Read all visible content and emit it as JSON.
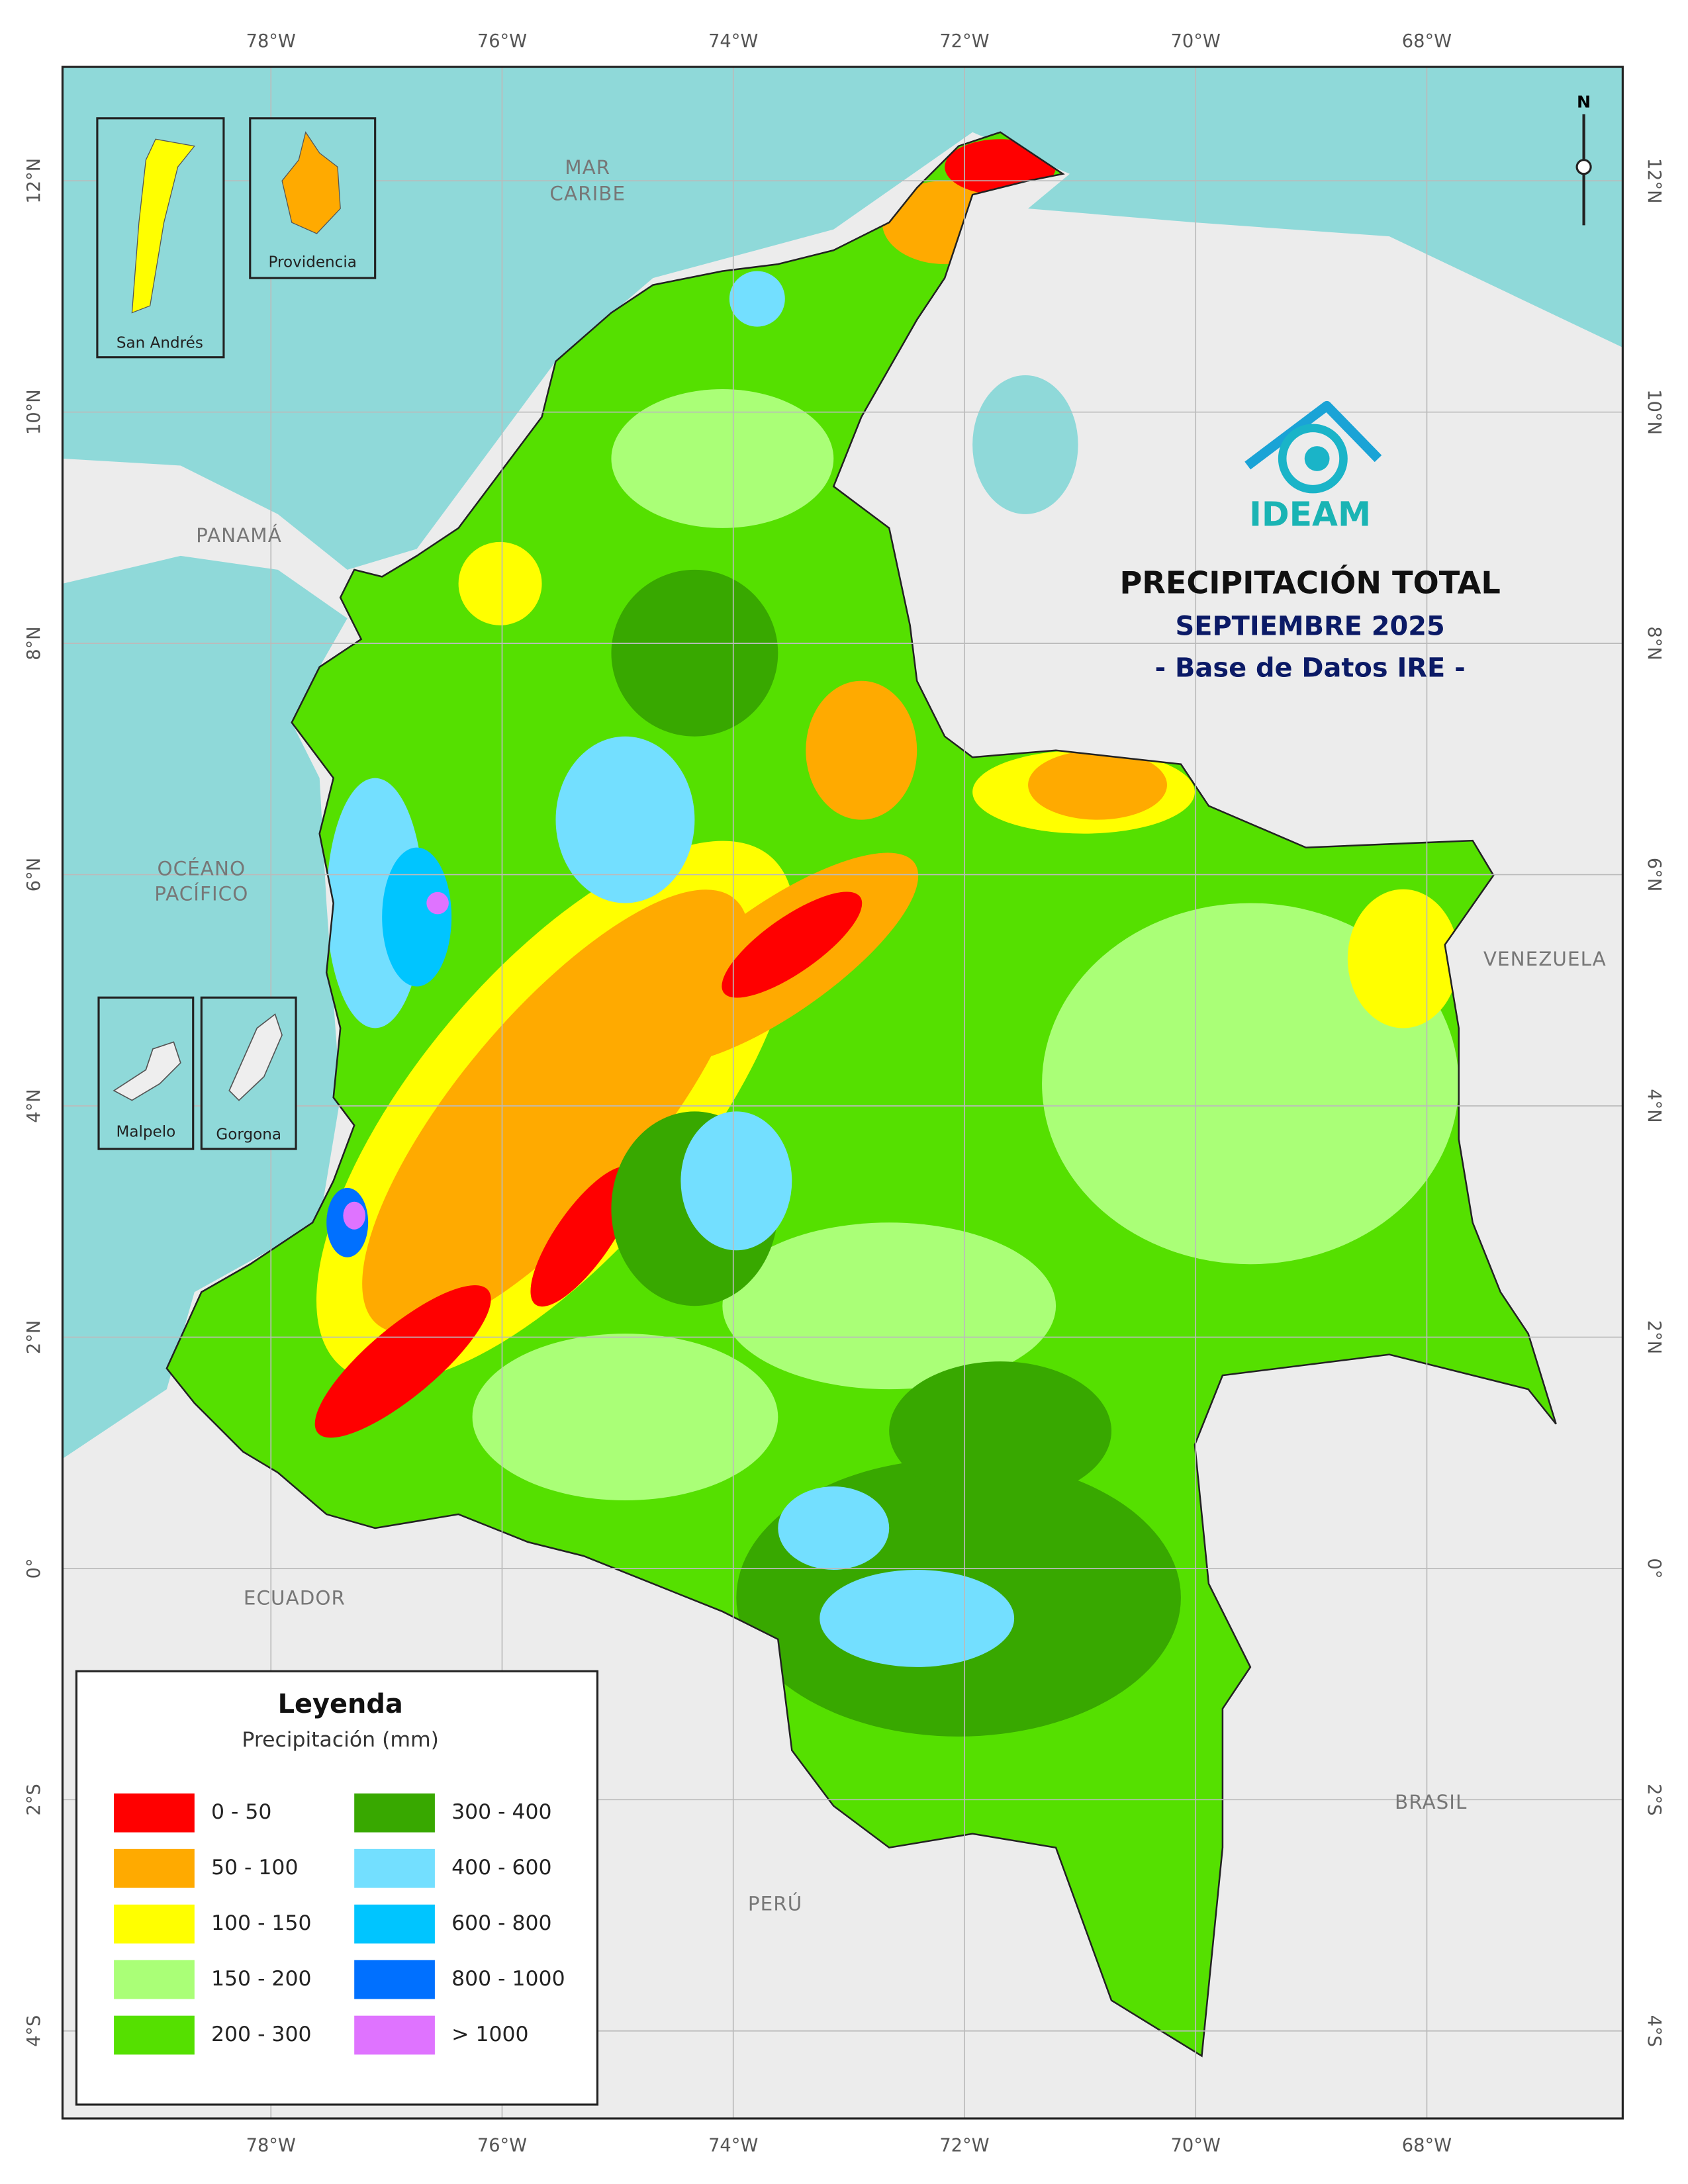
{
  "title": "PRECIPITACIÓN TOTAL",
  "subtitle": "SEPTIEMBRE 2025",
  "source": "- Base de Datos IRE -",
  "logo": "IDEAM",
  "north": "N",
  "longitudes": [
    "78°W",
    "76°W",
    "74°W",
    "72°W",
    "70°W",
    "68°W"
  ],
  "latitudes": [
    "12°N",
    "10°N",
    "8°N",
    "6°N",
    "4°N",
    "2°N",
    "0°",
    "2°S",
    "4°S"
  ],
  "places": {
    "mar_caribe": [
      "MAR",
      "CARIBE"
    ],
    "oceano_pacifico": [
      "OCÉANO",
      "PACÍFICO"
    ],
    "panama": "PANAMÁ",
    "venezuela": "VENEZUELA",
    "ecuador": "ECUADOR",
    "peru": "PERÚ",
    "brasil": "BRASIL"
  },
  "insets": [
    "San Andrés",
    "Providencia",
    "Malpelo",
    "Gorgona"
  ],
  "legend": {
    "title": "Leyenda",
    "subtitle": "Precipitación (mm)",
    "items": [
      {
        "label": "0 - 50",
        "color": "#ff0000"
      },
      {
        "label": "50 - 100",
        "color": "#ffaa00"
      },
      {
        "label": "100 - 150",
        "color": "#ffff00"
      },
      {
        "label": "150 - 200",
        "color": "#aaff77"
      },
      {
        "label": "200 - 300",
        "color": "#55e000"
      },
      {
        "label": "300 - 400",
        "color": "#38a800"
      },
      {
        "label": "400 - 600",
        "color": "#73dfff"
      },
      {
        "label": "600 - 800",
        "color": "#00c5ff"
      },
      {
        "label": "800 - 1000",
        "color": "#0070ff"
      },
      {
        "label": "> 1000",
        "color": "#df73ff"
      }
    ]
  }
}
